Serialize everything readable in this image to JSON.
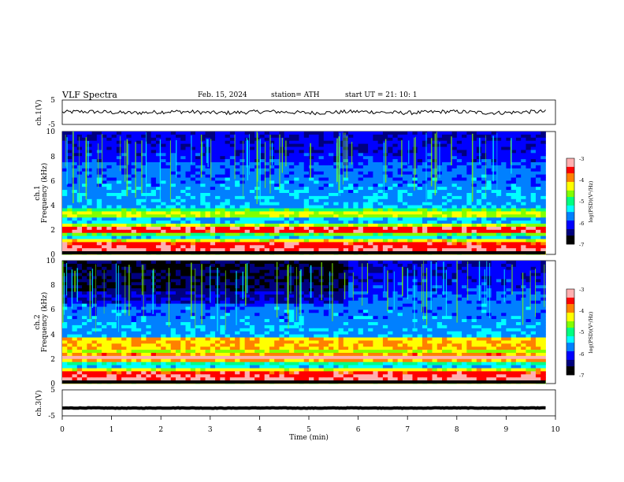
{
  "header": {
    "title": "VLF  Spectra",
    "date": "Feb. 15, 2024",
    "station": "station= ATH",
    "start": "start  UT  =    21: 10: 1"
  },
  "panels": {
    "ch1_wave_label": "ch.1(V)",
    "ch1_spec_label_a": "ch.1",
    "ch1_spec_label_b": "Frequency (kHz)",
    "ch2_spec_label_a": "ch.2",
    "ch2_spec_label_b": "Frequency (kHz)",
    "ch3_wave_label": "ch.3(V)",
    "colorbar_label": "log(PSD)(V²/Hz)"
  },
  "colors": {
    "colormap": [
      "#000000",
      "#00007f",
      "#0000ff",
      "#0080ff",
      "#00ffff",
      "#00ff80",
      "#80ff00",
      "#ffff00",
      "#ff8000",
      "#ff0000",
      "#ffb0b0",
      "#ffffff"
    ]
  },
  "chart_data": [
    {
      "type": "line",
      "name": "ch1-waveform",
      "ylabel": "ch.1(V)",
      "ylim": [
        -5,
        5
      ],
      "yticks": [
        "5",
        "-5"
      ],
      "xlim": [
        0,
        10
      ],
      "x_end": 9.8,
      "baseline": 0,
      "amplitude": 0.8
    },
    {
      "type": "heatmap",
      "name": "ch1-spectrogram",
      "ylabel": "Frequency (kHz)",
      "ylim": [
        0,
        10
      ],
      "yticks": [
        "0",
        "2",
        "4",
        "6",
        "8",
        "10"
      ],
      "xlim": [
        0,
        10
      ],
      "x_end": 9.8,
      "z_range": [
        -7,
        -3
      ],
      "colorbar_ticks": [
        "-3",
        "-4",
        "-5",
        "-6",
        "-7"
      ],
      "strong_bands_khz": [
        0.3,
        0.6,
        1.0,
        1.9,
        2.2,
        3.3
      ]
    },
    {
      "type": "heatmap",
      "name": "ch2-spectrogram",
      "ylabel": "Frequency (kHz)",
      "ylim": [
        0,
        10
      ],
      "yticks": [
        "0",
        "2",
        "4",
        "6",
        "8",
        "10"
      ],
      "xlim": [
        0,
        10
      ],
      "x_end": 9.8,
      "z_range": [
        -7,
        -3
      ],
      "colorbar_ticks": [
        "-3",
        "-4",
        "-5",
        "-6",
        "-7"
      ],
      "strong_bands_khz": [
        0.3,
        0.6,
        1.0,
        2.0,
        2.3,
        3.0,
        3.5
      ]
    },
    {
      "type": "line",
      "name": "ch3-waveform",
      "ylabel": "ch.3(V)",
      "ylim": [
        -5,
        5
      ],
      "yticks": [
        "5",
        "-5"
      ],
      "xlim": [
        0,
        10
      ],
      "x_end": 9.8,
      "baseline": -2,
      "amplitude": 0.1
    }
  ],
  "x_axis": {
    "label": "Time  (min)",
    "ticks": [
      "0",
      "1",
      "2",
      "3",
      "4",
      "5",
      "6",
      "7",
      "8",
      "9",
      "10"
    ]
  }
}
